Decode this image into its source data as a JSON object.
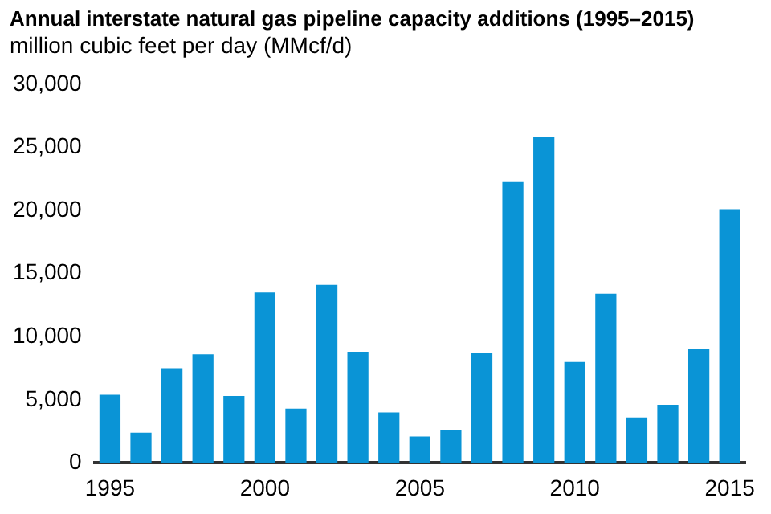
{
  "chart_data": {
    "type": "bar",
    "title": "Annual interstate natural gas pipeline capacity additions (1995–2015)",
    "subtitle": "million cubic feet per day (MMcf/d)",
    "categories": [
      "1995",
      null,
      null,
      null,
      null,
      "2000",
      null,
      null,
      null,
      null,
      "2005",
      null,
      null,
      null,
      null,
      "2010",
      null,
      null,
      null,
      null,
      "2015"
    ],
    "values": [
      5400,
      2400,
      7500,
      8600,
      5300,
      13500,
      4300,
      14100,
      8800,
      4000,
      2100,
      2600,
      8700,
      22300,
      25800,
      8000,
      13400,
      3600,
      4600,
      9000,
      20100
    ],
    "color": "#0a94d6",
    "ylim": [
      0,
      30000
    ],
    "yticks": [
      0,
      {
        "value": 5000,
        "label": "5,000"
      },
      {
        "value": 10000,
        "label": "10,000"
      },
      {
        "value": 15000,
        "label": "15,000"
      },
      {
        "value": 20000,
        "label": "20,000"
      },
      {
        "value": 25000,
        "label": "25,000"
      },
      {
        "value": 30000,
        "label": "30,000"
      }
    ],
    "grid": false,
    "legend": false
  }
}
